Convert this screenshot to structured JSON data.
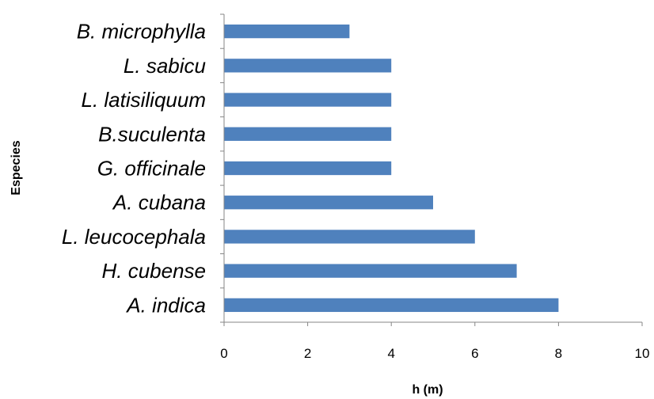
{
  "chart_data": {
    "type": "bar",
    "orientation": "horizontal",
    "categories": [
      "B. microphylla",
      "L. sabicu",
      "L. latisiliquum",
      "B.suculenta",
      "G. officinale",
      "A. cubana",
      "L. leucocephala",
      "H. cubense",
      "A. indica"
    ],
    "values": [
      3,
      4,
      4,
      4,
      4,
      5,
      6,
      7,
      8
    ],
    "title": "",
    "xlabel": "h (m)",
    "ylabel": "Especies",
    "xlim": [
      0,
      10
    ],
    "xticks": [
      "0",
      "2",
      "4",
      "6",
      "8",
      "10"
    ],
    "grid": false,
    "legend": "none",
    "bar_color": "#4f81bd"
  }
}
